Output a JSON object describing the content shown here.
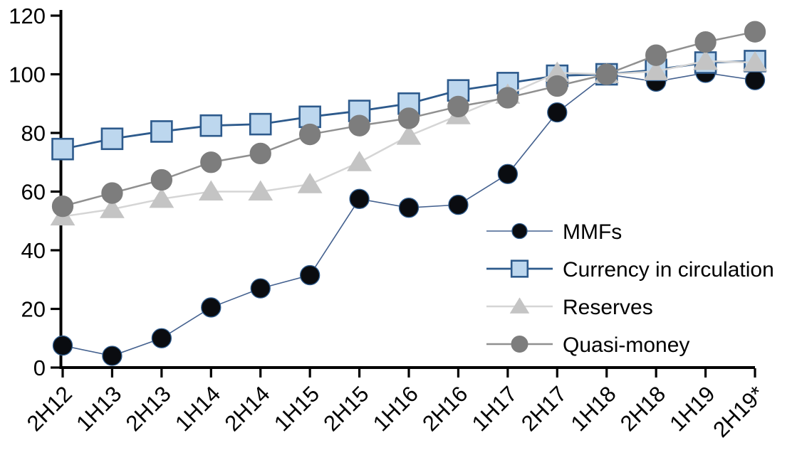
{
  "chart_data": {
    "type": "line",
    "title": "",
    "xlabel": "",
    "ylabel": "",
    "grid": false,
    "legend_position": "center-right",
    "ylim": [
      0,
      120
    ],
    "y_ticks": [
      0,
      20,
      40,
      60,
      80,
      100,
      120
    ],
    "categories": [
      "2H12",
      "1H13",
      "2H13",
      "1H14",
      "2H14",
      "1H15",
      "2H15",
      "1H16",
      "2H16",
      "1H17",
      "2H17",
      "1H18",
      "2H18",
      "1H19",
      "2H19*"
    ],
    "series": [
      {
        "name": "MMFs",
        "marker": "circle",
        "marker_color": "#0a0c10",
        "marker_stroke": "#2d5a8c",
        "line_color": "#44618f",
        "line_width": 1.6,
        "values": [
          7.5,
          4,
          10,
          20.5,
          27,
          31.5,
          57.5,
          54.5,
          55.5,
          66,
          87,
          100,
          97.5,
          100.5,
          98
        ]
      },
      {
        "name": "Currency in circulation",
        "marker": "square",
        "marker_color": "#bdd7ee",
        "marker_stroke": "#2d5a8c",
        "line_color": "#2d5a8c",
        "line_width": 2.8,
        "values": [
          74.5,
          78,
          80.5,
          82.5,
          83,
          85.5,
          87.5,
          90,
          94.5,
          97,
          99.5,
          100,
          101.5,
          104,
          104.5
        ]
      },
      {
        "name": "Reserves",
        "marker": "triangle",
        "marker_color": "#c4c4c4",
        "marker_stroke": "#c4c4c4",
        "line_color": "#d5d5d5",
        "line_width": 2.5,
        "values": [
          51.5,
          54,
          57.5,
          60,
          60,
          62.5,
          70,
          79,
          86,
          93,
          100.5,
          100,
          101,
          104.5,
          104
        ]
      },
      {
        "name": "Quasi-money",
        "marker": "circle",
        "marker_color": "#7d7d7d",
        "marker_stroke": "#7d7d7d",
        "line_color": "#909090",
        "line_width": 2.5,
        "values": [
          55,
          59.5,
          64,
          70,
          73,
          79.5,
          82.5,
          85,
          89,
          92,
          96,
          100,
          106.5,
          111,
          114.5
        ]
      }
    ],
    "axis_color": "#000000"
  }
}
